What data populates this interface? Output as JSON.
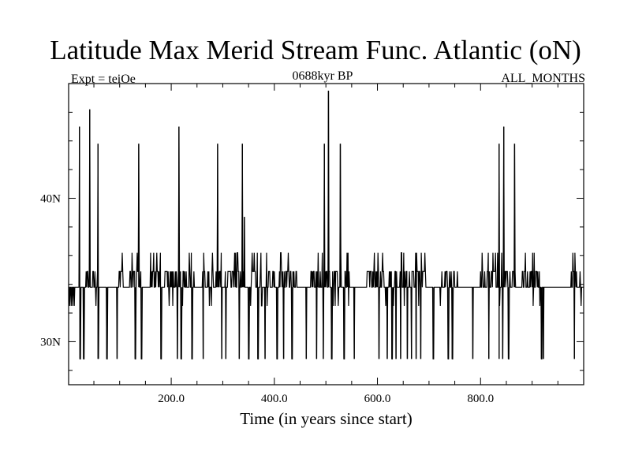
{
  "header": {
    "title": "Latitude Max Merid Stream Func. Atlantic (oN)",
    "expt_label": "Expt = teiOe",
    "subtitle": "0688kyr BP",
    "season": "ALL_MONTHS"
  },
  "chart_data": {
    "type": "line",
    "title": "Latitude Max Merid Stream Func. Atlantic (oN)",
    "xlabel": "Time (in years since start)",
    "ylabel": "",
    "xlim": [
      1,
      1000
    ],
    "ylim": [
      27,
      48
    ],
    "x_ticks": [
      200,
      400,
      600,
      800
    ],
    "x_tick_labels": [
      "200.0",
      "400.0",
      "600.0",
      "800.0"
    ],
    "y_ticks": [
      30,
      40
    ],
    "y_tick_labels": [
      "30N",
      "40N"
    ],
    "baseline": 33.8,
    "levels": [
      28.8,
      32.5,
      33.8,
      34.9,
      36.2
    ],
    "spikes": [
      {
        "x": 22,
        "y": 45.0
      },
      {
        "x": 42,
        "y": 46.2
      },
      {
        "x": 58,
        "y": 43.8
      },
      {
        "x": 137,
        "y": 43.8
      },
      {
        "x": 215,
        "y": 45.0
      },
      {
        "x": 290,
        "y": 43.8
      },
      {
        "x": 338,
        "y": 43.8
      },
      {
        "x": 342,
        "y": 38.7
      },
      {
        "x": 497,
        "y": 43.8
      },
      {
        "x": 505,
        "y": 47.5
      },
      {
        "x": 528,
        "y": 43.8
      },
      {
        "x": 836,
        "y": 43.8
      },
      {
        "x": 845,
        "y": 45.0
      },
      {
        "x": 866,
        "y": 43.8
      }
    ],
    "dips": [
      {
        "x": 23,
        "y": 28.8
      },
      {
        "x": 30,
        "y": 28.8
      },
      {
        "x": 58,
        "y": 28.8
      },
      {
        "x": 75,
        "y": 28.8
      },
      {
        "x": 95,
        "y": 28.8
      },
      {
        "x": 130,
        "y": 28.8
      },
      {
        "x": 142,
        "y": 28.8
      },
      {
        "x": 180,
        "y": 28.8
      },
      {
        "x": 212,
        "y": 28.8
      },
      {
        "x": 219,
        "y": 28.8
      },
      {
        "x": 240,
        "y": 28.8
      },
      {
        "x": 262,
        "y": 28.8
      },
      {
        "x": 298,
        "y": 28.8
      },
      {
        "x": 306,
        "y": 28.8
      },
      {
        "x": 332,
        "y": 28.8
      },
      {
        "x": 350,
        "y": 28.8
      },
      {
        "x": 368,
        "y": 28.8
      },
      {
        "x": 382,
        "y": 28.8
      },
      {
        "x": 405,
        "y": 28.8
      },
      {
        "x": 418,
        "y": 28.8
      },
      {
        "x": 434,
        "y": 28.8
      },
      {
        "x": 462,
        "y": 28.8
      },
      {
        "x": 482,
        "y": 28.8
      },
      {
        "x": 495,
        "y": 28.8
      },
      {
        "x": 511,
        "y": 28.8
      },
      {
        "x": 535,
        "y": 28.8
      },
      {
        "x": 555,
        "y": 28.8
      },
      {
        "x": 603,
        "y": 28.8
      },
      {
        "x": 619,
        "y": 28.8
      },
      {
        "x": 628,
        "y": 28.8
      },
      {
        "x": 636,
        "y": 28.8
      },
      {
        "x": 645,
        "y": 28.8
      },
      {
        "x": 658,
        "y": 28.8
      },
      {
        "x": 666,
        "y": 28.8
      },
      {
        "x": 675,
        "y": 28.8
      },
      {
        "x": 684,
        "y": 28.8
      },
      {
        "x": 708,
        "y": 28.8
      },
      {
        "x": 737,
        "y": 28.8
      },
      {
        "x": 745,
        "y": 28.8
      },
      {
        "x": 785,
        "y": 28.8
      },
      {
        "x": 816,
        "y": 28.8
      },
      {
        "x": 836,
        "y": 28.8
      },
      {
        "x": 843,
        "y": 28.8
      },
      {
        "x": 854,
        "y": 28.8
      },
      {
        "x": 918,
        "y": 28.8
      },
      {
        "x": 922,
        "y": 28.8
      },
      {
        "x": 982,
        "y": 28.8
      }
    ],
    "active_ranges": [
      [
        35,
        60
      ],
      [
        95,
        110
      ],
      [
        120,
        150
      ],
      [
        160,
        200
      ],
      [
        200,
        245
      ],
      [
        260,
        340
      ],
      [
        350,
        445
      ],
      [
        465,
        545
      ],
      [
        580,
        695
      ],
      [
        720,
        760
      ],
      [
        800,
        870
      ],
      [
        880,
        915
      ],
      [
        975,
        995
      ]
    ],
    "grid": false,
    "line_color": "#000000"
  }
}
